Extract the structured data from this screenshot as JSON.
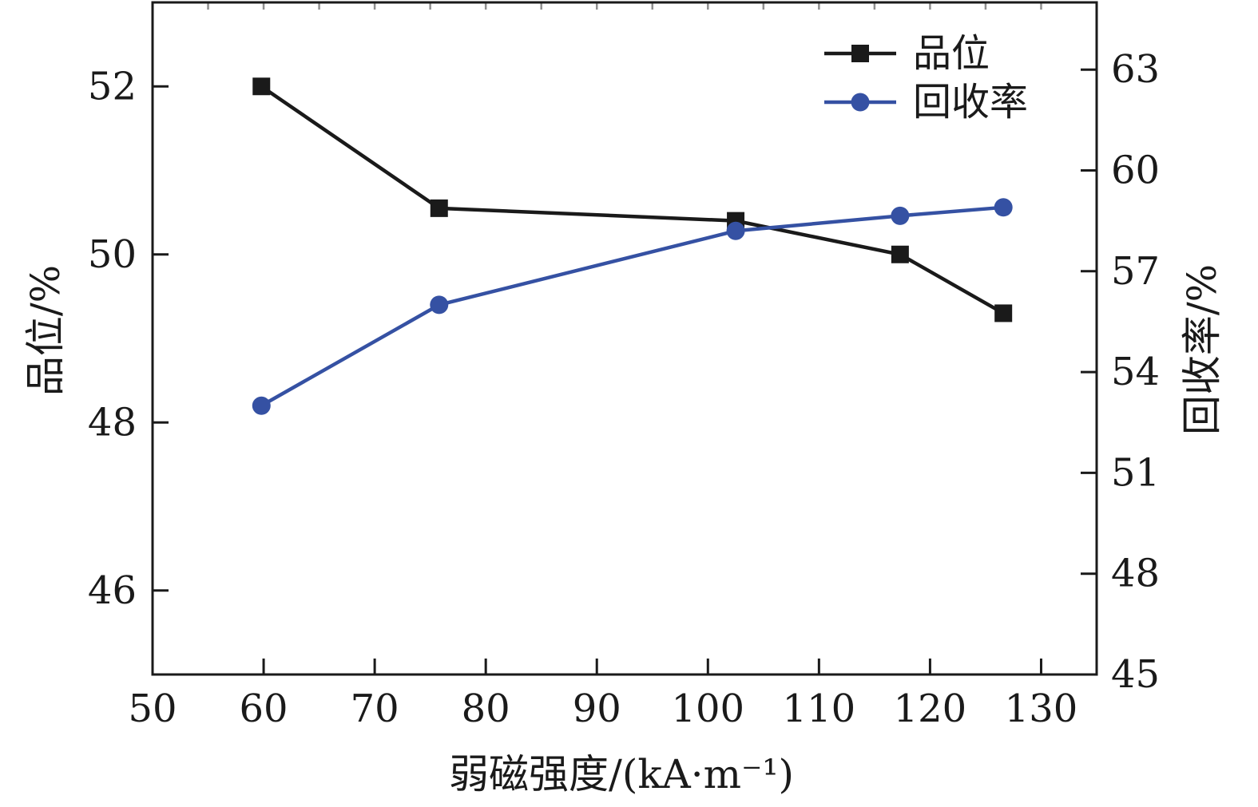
{
  "figure": {
    "background": "#ffffff",
    "axis_color": "#1a1a1a",
    "minor_tick_color": "#8f8f8f"
  },
  "chart_data": {
    "type": "line",
    "title": "",
    "grid": false,
    "x_axis": {
      "label": "弱磁强度/(kA·m⁻¹)",
      "range": [
        50,
        135
      ],
      "major_ticks": [
        50,
        60,
        70,
        80,
        90,
        100,
        110,
        120,
        130
      ],
      "minor_tick_step": 5
    },
    "y_left_axis": {
      "label": "品位/%",
      "range": [
        45,
        53
      ],
      "major_ticks": [
        46,
        48,
        50,
        52
      ]
    },
    "y_right_axis": {
      "label": "回收率/%",
      "range": [
        45,
        65
      ],
      "major_ticks": [
        45,
        48,
        51,
        54,
        57,
        60,
        63
      ]
    },
    "legend": {
      "position": "top-right",
      "items": [
        "品位",
        "回收率"
      ]
    },
    "series": [
      {
        "name": "品位",
        "axis": "left",
        "color": "#1a1a1a",
        "marker": "square",
        "x": [
          59.8,
          75.8,
          102.5,
          117.3,
          126.6
        ],
        "y": [
          52.0,
          50.55,
          50.4,
          50.0,
          49.3
        ]
      },
      {
        "name": "回收率",
        "axis": "right",
        "color": "#3551a3",
        "marker": "circle",
        "x": [
          59.8,
          75.8,
          102.5,
          117.3,
          126.6
        ],
        "y": [
          53.0,
          56.0,
          58.2,
          58.65,
          58.9
        ]
      }
    ]
  }
}
